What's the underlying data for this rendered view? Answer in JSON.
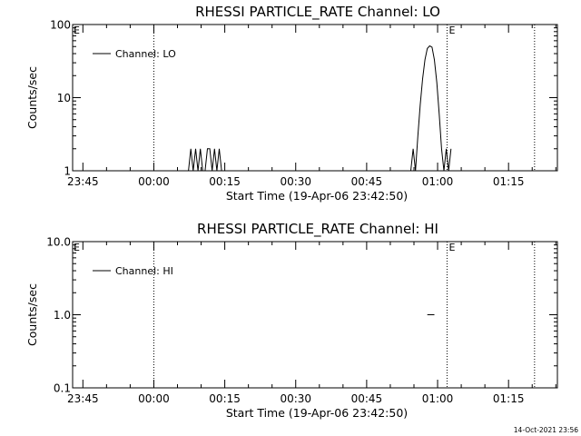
{
  "footer": {
    "timestamp": "14-Oct-2021 23:56"
  },
  "chart_data": [
    {
      "type": "line",
      "title": "RHESSI PARTICLE_RATE Channel: LO",
      "xlabel": "Start Time (19-Apr-06 23:42:50)",
      "ylabel": "Counts/sec",
      "y_scale": "log",
      "ylim": [
        1,
        100
      ],
      "y_ticks": [
        {
          "value": 1,
          "label": "1"
        },
        {
          "value": 10,
          "label": "10"
        },
        {
          "value": 100,
          "label": "100"
        }
      ],
      "xlim_minutes_since_start": [
        0,
        102.5
      ],
      "x_ticks": [
        {
          "value": 2.17,
          "label": "23:45"
        },
        {
          "value": 17.17,
          "label": "00:00"
        },
        {
          "value": 32.17,
          "label": "00:15"
        },
        {
          "value": 47.17,
          "label": "00:30"
        },
        {
          "value": 62.17,
          "label": "00:45"
        },
        {
          "value": 77.17,
          "label": "01:00"
        },
        {
          "value": 92.17,
          "label": "01:15"
        }
      ],
      "vlines": [
        {
          "value": 17.17,
          "label": ""
        },
        {
          "value": 79.17,
          "label": "E"
        },
        {
          "value": 97.67,
          "label": ""
        }
      ],
      "edge_label": "E",
      "legend": {
        "position": "top-left",
        "entries": [
          "Channel: LO"
        ]
      },
      "series": [
        {
          "name": "Channel: LO",
          "x": [
            24.5,
            25,
            25.5,
            26,
            26.5,
            27,
            27.5,
            28,
            28.5,
            29,
            29.5,
            30,
            30.5,
            31,
            31.5,
            32,
            32.5,
            33,
            33.5,
            71.5,
            72,
            72.5,
            73,
            73.5,
            74,
            74.5,
            75,
            75.5,
            76,
            76.5,
            77,
            77.5,
            78,
            78.5,
            79,
            79.5,
            80
          ],
          "y": [
            1,
            2,
            1,
            2,
            1,
            2,
            1,
            1,
            2,
            2,
            1,
            2,
            1,
            2,
            1,
            1,
            1,
            1,
            1,
            1,
            2,
            1,
            3,
            8,
            18,
            33,
            47,
            51,
            49,
            33,
            16,
            6,
            2,
            1,
            2,
            1,
            2
          ]
        }
      ]
    },
    {
      "type": "line",
      "title": "RHESSI PARTICLE_RATE Channel: HI",
      "xlabel": "Start Time (19-Apr-06 23:42:50)",
      "ylabel": "Counts/sec",
      "y_scale": "log",
      "ylim": [
        0.1,
        10
      ],
      "y_ticks": [
        {
          "value": 0.1,
          "label": "0.1"
        },
        {
          "value": 1,
          "label": "1.0"
        },
        {
          "value": 10,
          "label": "10.0"
        }
      ],
      "xlim_minutes_since_start": [
        0,
        102.5
      ],
      "x_ticks": [
        {
          "value": 2.17,
          "label": "23:45"
        },
        {
          "value": 17.17,
          "label": "00:00"
        },
        {
          "value": 32.17,
          "label": "00:15"
        },
        {
          "value": 47.17,
          "label": "00:30"
        },
        {
          "value": 62.17,
          "label": "00:45"
        },
        {
          "value": 77.17,
          "label": "01:00"
        },
        {
          "value": 92.17,
          "label": "01:15"
        }
      ],
      "vlines": [
        {
          "value": 17.17,
          "label": ""
        },
        {
          "value": 79.17,
          "label": "E"
        },
        {
          "value": 97.67,
          "label": ""
        }
      ],
      "edge_label": "E",
      "legend": {
        "position": "top-left",
        "entries": [
          "Channel: HI"
        ]
      },
      "series": [
        {
          "name": "Channel: HI",
          "x": [
            75,
            76.5
          ],
          "y": [
            1,
            1
          ]
        }
      ]
    }
  ]
}
